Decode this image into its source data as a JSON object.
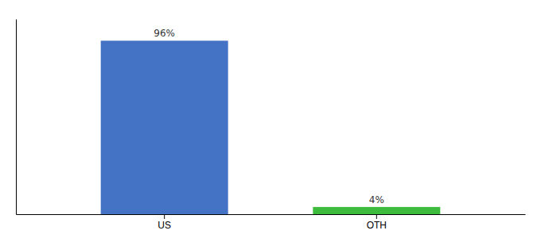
{
  "chart_data": {
    "type": "bar",
    "categories": [
      "US",
      "OTH"
    ],
    "values": [
      96,
      4
    ],
    "value_labels": [
      "96%",
      "4%"
    ],
    "colors": [
      "#4472c4",
      "#3dbb3d"
    ],
    "ylim": [
      0,
      108
    ],
    "data_labels": true,
    "tick_labels": "x"
  }
}
